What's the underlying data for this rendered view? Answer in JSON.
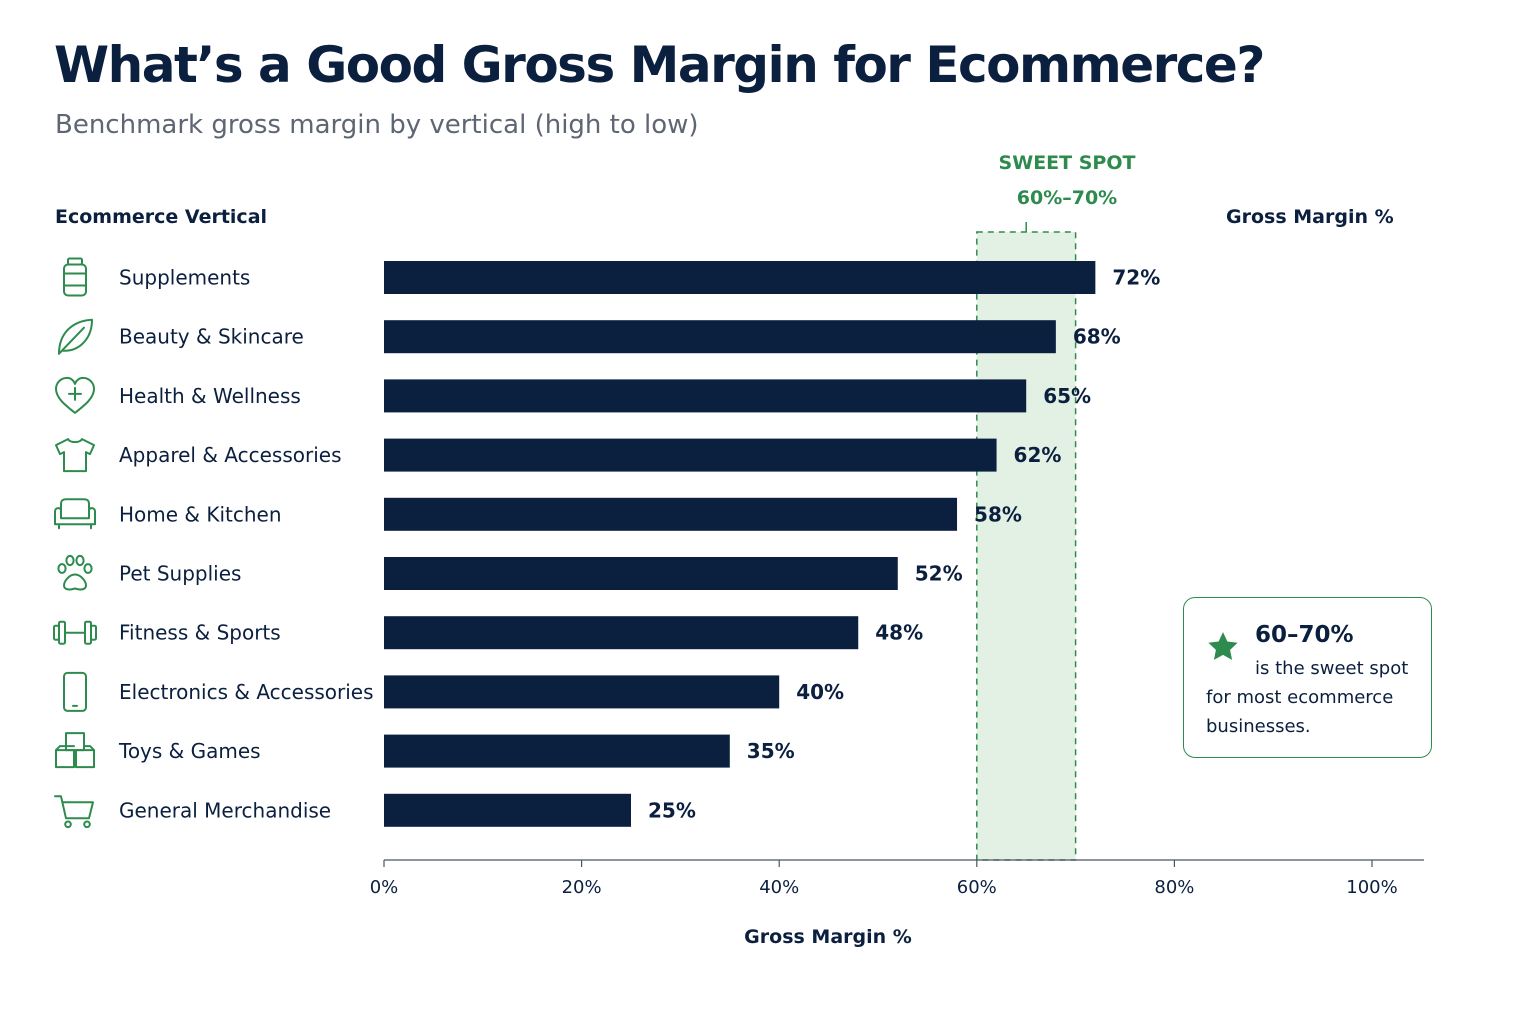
{
  "title": "What’s a Good Gross Margin for Ecommerce?",
  "subtitle": "Benchmark gross margin by vertical (high to low)",
  "column_headers": {
    "left": "Ecommerce Vertical",
    "right": "Gross Margin %"
  },
  "sweet_spot": {
    "label_line1": "SWEET SPOT",
    "label_line2": "60%–70%",
    "range": [
      60,
      70
    ]
  },
  "note": {
    "value": "60–70%",
    "line1": "is the sweet spot",
    "line2": "for most ecommerce",
    "line3": "businesses.",
    "icon": "star-icon"
  },
  "colors": {
    "bar": "#0b1f3f",
    "accent": "#2e8b4e",
    "sweet_spot_fill": "#e3f1e4"
  },
  "chart_data": {
    "type": "bar",
    "orientation": "horizontal",
    "categories": [
      "Supplements",
      "Beauty & Skincare",
      "Health & Wellness",
      "Apparel & Accessories",
      "Home & Kitchen",
      "Pet Supplies",
      "Fitness & Sports",
      "Electronics & Accessories",
      "Toys & Games",
      "General Merchandise"
    ],
    "icons": [
      "supplement-bottle-icon",
      "leaf-icon",
      "heart-plus-icon",
      "tshirt-icon",
      "sofa-icon",
      "paw-icon",
      "dumbbell-icon",
      "smartphone-icon",
      "blocks-icon",
      "shopping-cart-icon"
    ],
    "values": [
      72,
      68,
      65,
      62,
      58,
      52,
      48,
      40,
      35,
      25
    ],
    "value_labels": [
      "72%",
      "68%",
      "65%",
      "62%",
      "58%",
      "52%",
      "48%",
      "40%",
      "35%",
      "25%"
    ],
    "xlim": [
      0,
      100
    ],
    "xticks": [
      0,
      20,
      40,
      60,
      80,
      100
    ],
    "xtick_labels": [
      "0%",
      "20%",
      "40%",
      "60%",
      "80%",
      "100%"
    ],
    "xlabel": "Gross Margin %",
    "grid": false,
    "legend": "none"
  }
}
